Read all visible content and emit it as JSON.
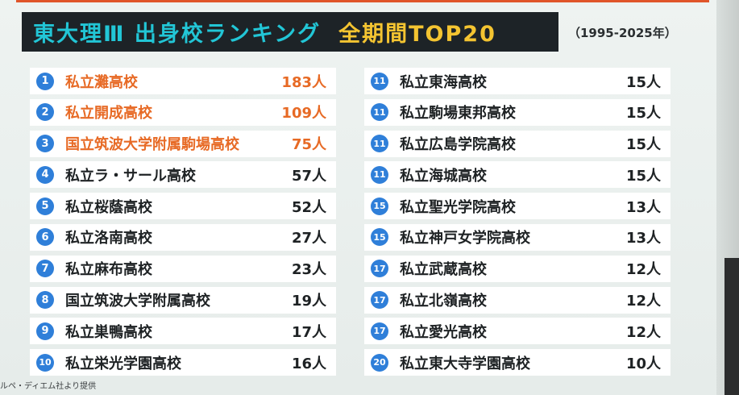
{
  "title": {
    "main": "東大理Ⅲ 出身校ランキング",
    "accent": "全期間TOP20",
    "period": "（1995-2025年）"
  },
  "colors": {
    "title_bg": "#1d2327",
    "title_cyan": "#22c6d6",
    "title_yellow": "#f4c431",
    "top3_orange": "#e76a25",
    "rank_blue": "#2f7fd9"
  },
  "left_column": [
    {
      "rank": "1",
      "school": "私立灘高校",
      "count": "183人",
      "highlight": true
    },
    {
      "rank": "2",
      "school": "私立開成高校",
      "count": "109人",
      "highlight": true
    },
    {
      "rank": "3",
      "school": "国立筑波大学附属駒場高校",
      "count": "75人",
      "highlight": true
    },
    {
      "rank": "4",
      "school": "私立ラ・サール高校",
      "count": "57人",
      "highlight": false
    },
    {
      "rank": "5",
      "school": "私立桜蔭高校",
      "count": "52人",
      "highlight": false
    },
    {
      "rank": "6",
      "school": "私立洛南高校",
      "count": "27人",
      "highlight": false
    },
    {
      "rank": "7",
      "school": "私立麻布高校",
      "count": "23人",
      "highlight": false
    },
    {
      "rank": "8",
      "school": "国立筑波大学附属高校",
      "count": "19人",
      "highlight": false
    },
    {
      "rank": "9",
      "school": "私立巣鴨高校",
      "count": "17人",
      "highlight": false
    },
    {
      "rank": "10",
      "school": "私立栄光学園高校",
      "count": "16人",
      "highlight": false
    }
  ],
  "right_column": [
    {
      "rank": "11",
      "school": "私立東海高校",
      "count": "15人"
    },
    {
      "rank": "11",
      "school": "私立駒場東邦高校",
      "count": "15人"
    },
    {
      "rank": "11",
      "school": "私立広島学院高校",
      "count": "15人"
    },
    {
      "rank": "11",
      "school": "私立海城高校",
      "count": "15人"
    },
    {
      "rank": "15",
      "school": "私立聖光学院高校",
      "count": "13人"
    },
    {
      "rank": "15",
      "school": "私立神戸女学院高校",
      "count": "13人"
    },
    {
      "rank": "17",
      "school": "私立武蔵高校",
      "count": "12人"
    },
    {
      "rank": "17",
      "school": "私立北嶺高校",
      "count": "12人"
    },
    {
      "rank": "17",
      "school": "私立愛光高校",
      "count": "12人"
    },
    {
      "rank": "20",
      "school": "私立東大寺学園高校",
      "count": "10人"
    }
  ],
  "credit": "ルペ・ディエム社より提供"
}
